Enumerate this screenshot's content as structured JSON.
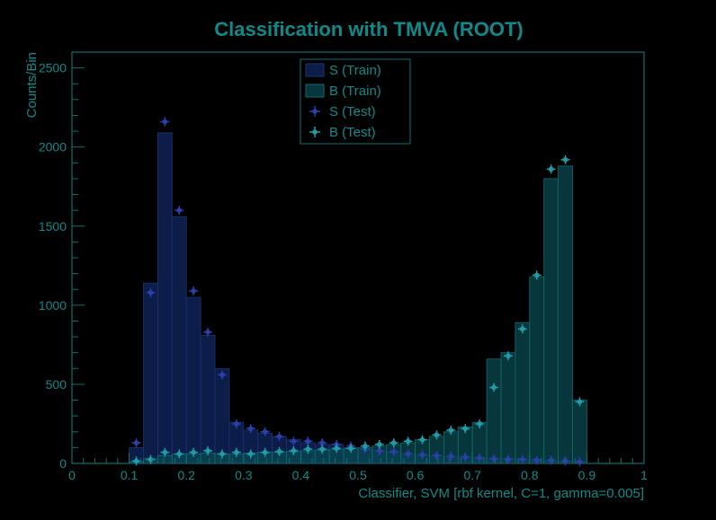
{
  "chart_data": {
    "type": "bar",
    "title": "Classification with TMVA (ROOT)",
    "xlabel": "Classifier, SVM [rbf kernel, C=1, gamma=0.005]",
    "ylabel": "Counts/Bin",
    "xlim": [
      0,
      1
    ],
    "ylim": [
      0,
      2600
    ],
    "x_ticks": [
      0,
      0.1,
      0.2,
      0.3,
      0.4,
      0.5,
      0.6,
      0.7,
      0.8,
      0.9,
      1
    ],
    "x_tick_labels": [
      "0",
      "0.1",
      "0.2",
      "0.3",
      "0.4",
      "0.5",
      "0.6",
      "0.7",
      "0.8",
      "0.9",
      "1"
    ],
    "y_ticks": [
      0,
      500,
      1000,
      1500,
      2000,
      2500
    ],
    "y_tick_labels": [
      "0",
      "500",
      "1000",
      "1500",
      "2000",
      "2500"
    ],
    "bin_width": 0.025,
    "legend_position": "top-center",
    "colors": {
      "background": "#000000",
      "text": "#0e8a8a",
      "frame": "#0f6f6f",
      "signal_fill": "#0c1f4c",
      "background_fill": "#0a4a50",
      "signal_marker": "#2a3fa8",
      "background_marker": "#1f9ca8"
    },
    "series": [
      {
        "name": "S (Train)",
        "kind": "hist",
        "x": [
          0.1125,
          0.1375,
          0.1625,
          0.1875,
          0.2125,
          0.2375,
          0.2625,
          0.2875,
          0.3125,
          0.3375,
          0.3625,
          0.3875,
          0.4125,
          0.4375,
          0.4625,
          0.4875,
          0.5125,
          0.5375,
          0.5625,
          0.5875,
          0.6125,
          0.6375,
          0.6625,
          0.6875,
          0.7125,
          0.7375,
          0.7625,
          0.7875,
          0.8125,
          0.8375,
          0.8625,
          0.8875
        ],
        "values": [
          100,
          1140,
          2090,
          1560,
          1050,
          810,
          600,
          260,
          210,
          190,
          170,
          150,
          130,
          120,
          120,
          100,
          90,
          80,
          70,
          60,
          55,
          50,
          45,
          40,
          35,
          30,
          30,
          25,
          25,
          20,
          15,
          10
        ]
      },
      {
        "name": "B (Train)",
        "kind": "hist",
        "x": [
          0.1125,
          0.1375,
          0.1625,
          0.1875,
          0.2125,
          0.2375,
          0.2625,
          0.2875,
          0.3125,
          0.3375,
          0.3625,
          0.3875,
          0.4125,
          0.4375,
          0.4625,
          0.4875,
          0.5125,
          0.5375,
          0.5625,
          0.5875,
          0.6125,
          0.6375,
          0.6625,
          0.6875,
          0.7125,
          0.7375,
          0.7625,
          0.7875,
          0.8125,
          0.8375,
          0.8625,
          0.8875
        ],
        "values": [
          10,
          30,
          50,
          60,
          60,
          65,
          60,
          60,
          65,
          70,
          70,
          75,
          80,
          85,
          90,
          95,
          100,
          110,
          120,
          130,
          150,
          170,
          200,
          230,
          260,
          660,
          700,
          890,
          1180,
          1800,
          1880,
          400
        ]
      },
      {
        "name": "S (Test)",
        "kind": "points",
        "x": [
          0.1125,
          0.1375,
          0.1625,
          0.1875,
          0.2125,
          0.2375,
          0.2625,
          0.2875,
          0.3125,
          0.3375,
          0.3625,
          0.3875,
          0.4125,
          0.4375,
          0.4625,
          0.4875,
          0.5125,
          0.5375,
          0.5625,
          0.5875,
          0.6125,
          0.6375,
          0.6625,
          0.6875,
          0.7125,
          0.7375,
          0.7625,
          0.7875,
          0.8125,
          0.8375,
          0.8625,
          0.8875
        ],
        "values": [
          130,
          1080,
          2160,
          1600,
          1090,
          830,
          560,
          250,
          220,
          200,
          170,
          140,
          140,
          130,
          120,
          110,
          90,
          80,
          75,
          60,
          55,
          50,
          45,
          40,
          35,
          30,
          25,
          25,
          20,
          20,
          15,
          10
        ]
      },
      {
        "name": "B (Test)",
        "kind": "points",
        "x": [
          0.1125,
          0.1375,
          0.1625,
          0.1875,
          0.2125,
          0.2375,
          0.2625,
          0.2875,
          0.3125,
          0.3375,
          0.3625,
          0.3875,
          0.4125,
          0.4375,
          0.4625,
          0.4875,
          0.5125,
          0.5375,
          0.5625,
          0.5875,
          0.6125,
          0.6375,
          0.6625,
          0.6875,
          0.7125,
          0.7375,
          0.7625,
          0.7875,
          0.8125,
          0.8375,
          0.8625,
          0.8875
        ],
        "values": [
          15,
          25,
          70,
          60,
          70,
          80,
          60,
          70,
          60,
          70,
          75,
          80,
          90,
          90,
          95,
          95,
          110,
          120,
          130,
          140,
          150,
          180,
          210,
          220,
          250,
          480,
          680,
          850,
          1190,
          1860,
          1920,
          390
        ]
      }
    ]
  }
}
